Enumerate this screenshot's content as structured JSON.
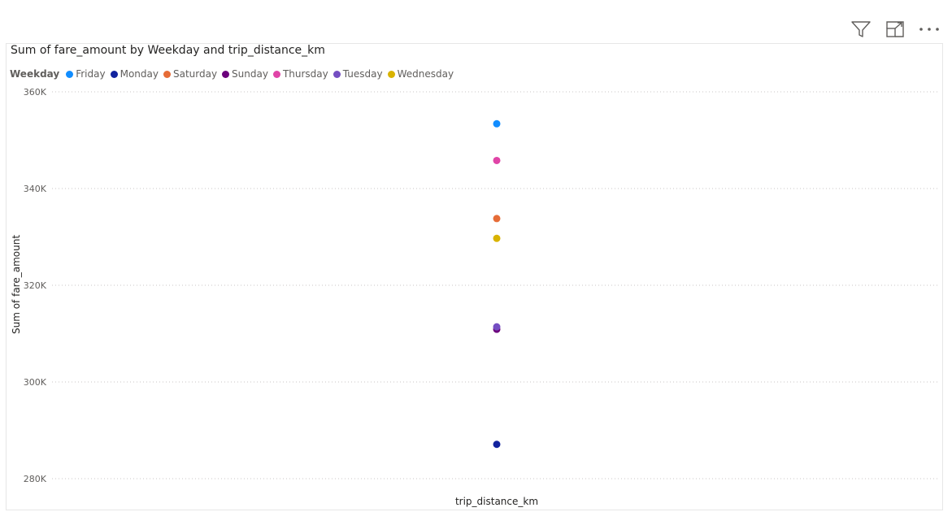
{
  "header": {
    "filter_icon": "filter-icon",
    "focus_icon": "focus-mode-icon",
    "more_icon": "more-options-icon"
  },
  "legend": {
    "title": "Weekday",
    "items": [
      {
        "label": "Friday",
        "color": "#118dff"
      },
      {
        "label": "Monday",
        "color": "#12239e"
      },
      {
        "label": "Saturday",
        "color": "#e66c37"
      },
      {
        "label": "Sunday",
        "color": "#6b007b"
      },
      {
        "label": "Thursday",
        "color": "#e044a7"
      },
      {
        "label": "Tuesday",
        "color": "#744ec2"
      },
      {
        "label": "Wednesday",
        "color": "#d9b300"
      }
    ]
  },
  "chart_data": {
    "type": "scatter",
    "title": "Sum of fare_amount by Weekday and trip_distance_km",
    "xlabel": "trip_distance_km",
    "ylabel": "Sum of fare_amount",
    "ylim": [
      280000,
      360000
    ],
    "yticks": [
      {
        "value": 280000,
        "label": "280K"
      },
      {
        "value": 300000,
        "label": "300K"
      },
      {
        "value": 320000,
        "label": "320K"
      },
      {
        "value": 340000,
        "label": "340K"
      },
      {
        "value": 360000,
        "label": "360K"
      }
    ],
    "grid": true,
    "legend_position": "top-left",
    "series": [
      {
        "name": "Friday",
        "color": "#118dff",
        "y": 353400
      },
      {
        "name": "Monday",
        "color": "#12239e",
        "y": 287100
      },
      {
        "name": "Saturday",
        "color": "#e66c37",
        "y": 333800
      },
      {
        "name": "Sunday",
        "color": "#6b007b",
        "y": 310900
      },
      {
        "name": "Thursday",
        "color": "#e044a7",
        "y": 345800
      },
      {
        "name": "Tuesday",
        "color": "#744ec2",
        "y": 311400
      },
      {
        "name": "Wednesday",
        "color": "#d9b300",
        "y": 329700
      }
    ]
  }
}
